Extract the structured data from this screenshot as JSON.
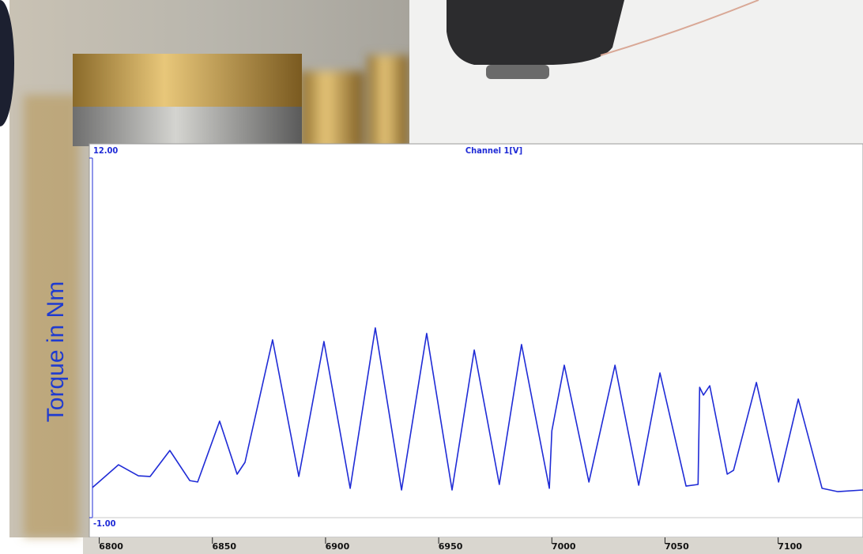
{
  "chart_data": {
    "type": "line",
    "title": "Channel 1[V]",
    "y_label": "Torque in Nm",
    "x": [
      6797.0,
      6808.5,
      6817.3,
      6822.5,
      6831.2,
      6840.0,
      6843.5,
      6853.2,
      6860.9,
      6864.4,
      6876.6,
      6888.2,
      6899.3,
      6910.9,
      6922.0,
      6933.6,
      6944.7,
      6955.9,
      6965.7,
      6976.8,
      6986.6,
      6998.9,
      7000.0,
      7005.5,
      7016.4,
      7027.9,
      7038.4,
      7047.8,
      7059.3,
      7064.6,
      7065.3,
      7067.0,
      7069.8,
      7077.5,
      7080.3,
      7090.4,
      7100.2,
      7108.9,
      7119.4,
      7126.4,
      7137.5
    ],
    "series": [
      {
        "color": "#1f2bd6",
        "values": [
          0.09,
          0.91,
          0.51,
          0.49,
          1.43,
          0.34,
          0.29,
          2.49,
          0.57,
          1.0,
          5.43,
          0.49,
          5.37,
          0.06,
          5.86,
          0.0,
          5.66,
          0.0,
          5.06,
          0.2,
          5.26,
          0.06,
          2.14,
          4.51,
          0.29,
          4.51,
          0.17,
          4.23,
          0.14,
          0.2,
          3.71,
          3.43,
          3.77,
          0.57,
          0.71,
          3.89,
          0.29,
          3.29,
          0.06,
          -0.06,
          0.0
        ]
      }
    ],
    "xlim": [
      6797,
      7137.5
    ],
    "xticks": [
      6800,
      6850,
      6900,
      6950,
      7000,
      7050,
      7100
    ],
    "ylim": [
      -1,
      12
    ],
    "yticks": [
      {
        "value": 12,
        "label": "12.00"
      },
      {
        "value": -1,
        "label": "-1.00"
      }
    ]
  }
}
